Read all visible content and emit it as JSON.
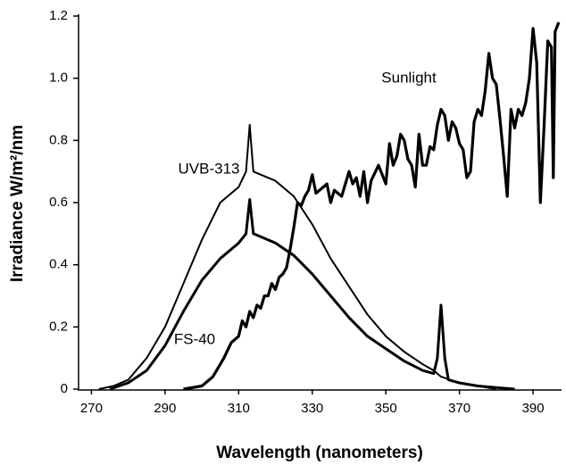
{
  "chart_data": {
    "type": "line",
    "xlabel": "Wavelength (nanometers)",
    "ylabel": "Irradiance  W/m²/nm",
    "xlim": [
      266.5,
      397.5
    ],
    "xticks": [
      270,
      290,
      310,
      330,
      350,
      370,
      390
    ],
    "ylim": [
      0,
      1.2
    ],
    "yticks": [
      0,
      0.2,
      0.4,
      0.6,
      0.8,
      {
        "value": 1,
        "label": "1.0"
      },
      1.2
    ],
    "annotations": [
      "Sunlight",
      "UVB-313",
      "FS-40"
    ],
    "series": [
      {
        "name": "UVB-313",
        "color": "#000000",
        "x": [
          272,
          276,
          280,
          285,
          290,
          295,
          300,
          305,
          310,
          312,
          313,
          314,
          316,
          320,
          325,
          330,
          335,
          340,
          345,
          350,
          355,
          360,
          363,
          365,
          370,
          375,
          380
        ],
        "values": [
          0,
          0.01,
          0.03,
          0.1,
          0.2,
          0.34,
          0.48,
          0.6,
          0.65,
          0.7,
          0.85,
          0.7,
          0.69,
          0.67,
          0.62,
          0.53,
          0.42,
          0.33,
          0.24,
          0.17,
          0.12,
          0.08,
          0.06,
          0.04,
          0.02,
          0.01,
          0
        ]
      },
      {
        "name": "FS-40",
        "color": "#000000",
        "x": [
          275,
          280,
          285,
          290,
          295,
          300,
          305,
          310,
          312,
          313,
          314,
          316,
          320,
          325,
          330,
          335,
          340,
          345,
          350,
          355,
          360,
          363,
          364,
          365,
          366,
          367,
          370,
          375,
          385
        ],
        "values": [
          0,
          0.02,
          0.06,
          0.14,
          0.25,
          0.35,
          0.42,
          0.47,
          0.5,
          0.61,
          0.5,
          0.49,
          0.47,
          0.43,
          0.37,
          0.3,
          0.23,
          0.17,
          0.13,
          0.09,
          0.06,
          0.05,
          0.1,
          0.27,
          0.1,
          0.03,
          0.02,
          0.01,
          0
        ]
      },
      {
        "name": "Sunlight",
        "color": "#000000",
        "x": [
          295,
          300,
          303,
          306,
          308,
          310,
          311,
          312,
          313,
          314,
          315,
          316,
          317,
          318,
          319,
          320,
          321,
          322,
          323,
          324,
          325,
          326,
          327,
          328,
          329,
          330,
          331,
          332,
          334,
          335,
          336,
          338,
          340,
          341,
          342,
          343,
          344,
          345,
          346,
          348,
          350,
          351,
          352,
          353,
          354,
          355,
          356,
          357,
          358,
          359,
          360,
          361,
          362,
          363,
          364,
          365,
          366,
          367,
          368,
          369,
          370,
          371,
          372,
          373,
          374,
          375,
          376,
          377,
          378,
          379,
          380,
          381,
          382,
          383,
          384,
          385,
          386,
          387,
          388,
          389,
          390,
          391,
          392,
          393,
          394,
          395,
          395.5,
          396,
          397
        ],
        "values": [
          0,
          0.01,
          0.04,
          0.1,
          0.15,
          0.17,
          0.22,
          0.2,
          0.25,
          0.23,
          0.27,
          0.26,
          0.3,
          0.3,
          0.34,
          0.32,
          0.36,
          0.37,
          0.39,
          0.45,
          0.52,
          0.6,
          0.59,
          0.62,
          0.64,
          0.69,
          0.63,
          0.64,
          0.66,
          0.6,
          0.64,
          0.62,
          0.7,
          0.66,
          0.68,
          0.62,
          0.7,
          0.6,
          0.67,
          0.72,
          0.66,
          0.79,
          0.72,
          0.75,
          0.82,
          0.8,
          0.74,
          0.72,
          0.65,
          0.82,
          0.72,
          0.72,
          0.78,
          0.77,
          0.85,
          0.9,
          0.88,
          0.8,
          0.86,
          0.84,
          0.79,
          0.77,
          0.68,
          0.7,
          0.86,
          0.9,
          0.88,
          0.96,
          1.08,
          1.0,
          0.98,
          0.87,
          0.75,
          0.62,
          0.9,
          0.84,
          0.9,
          0.88,
          0.92,
          1.0,
          1.16,
          1.05,
          0.6,
          0.85,
          1.12,
          1.1,
          0.68,
          1.15,
          1.18
        ]
      }
    ]
  }
}
